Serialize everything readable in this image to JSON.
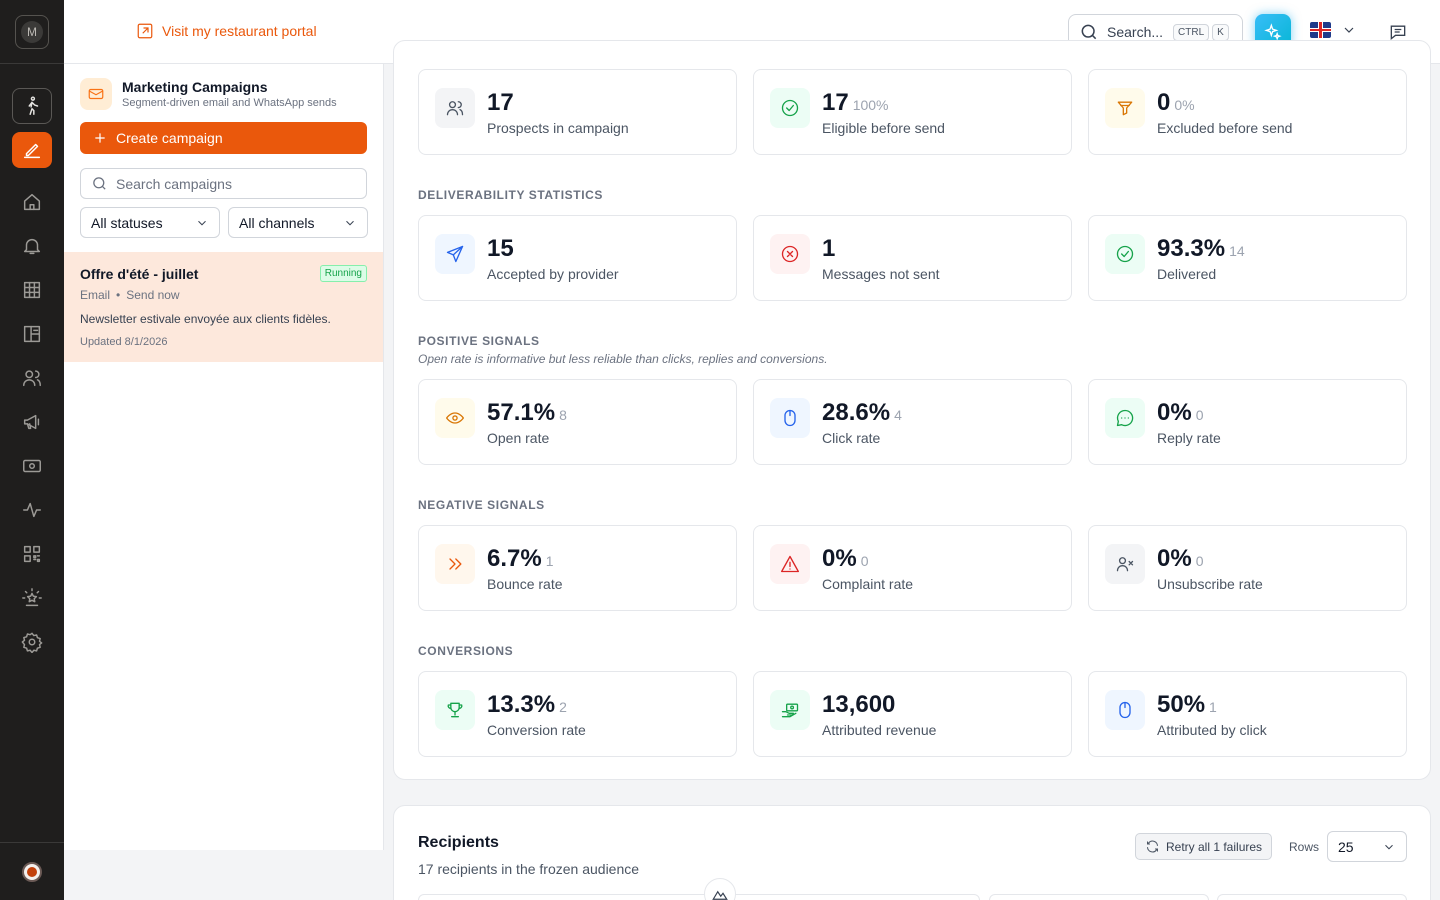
{
  "rail": {
    "avatar_initial": "M",
    "items": [
      {
        "icon": "walking-icon",
        "state": "outlined"
      },
      {
        "icon": "pen-edit-icon",
        "state": "active"
      },
      {
        "icon": "home-icon",
        "state": "default"
      },
      {
        "icon": "bell-icon",
        "state": "default"
      },
      {
        "icon": "grid-icon",
        "state": "default"
      },
      {
        "icon": "layout-icon",
        "state": "default"
      },
      {
        "icon": "users-icon",
        "state": "default"
      },
      {
        "icon": "megaphone-icon",
        "state": "default"
      },
      {
        "icon": "cash-icon",
        "state": "default"
      },
      {
        "icon": "activity-icon",
        "state": "default"
      },
      {
        "icon": "qr-code-icon",
        "state": "default"
      },
      {
        "icon": "star-badge-icon",
        "state": "default"
      },
      {
        "icon": "gear-icon",
        "state": "default"
      }
    ]
  },
  "header": {
    "portal_link": "Visit my restaurant portal",
    "search_label": "Search...",
    "kbd_ctrl": "CTRL",
    "kbd_k": "K"
  },
  "panel": {
    "title": "Marketing Campaigns",
    "subtitle": "Segment-driven email and WhatsApp sends",
    "create_label": "Create campaign",
    "search_placeholder": "Search campaigns",
    "status_filter": "All statuses",
    "channel_filter": "All channels",
    "campaigns": [
      {
        "title": "Offre d'été - juillet",
        "status": "Running",
        "channel": "Email",
        "separator": "•",
        "mode": "Send now",
        "description": "Newsletter estivale envoyée aux clients fidèles.",
        "updated": "Updated 8/1/2026"
      }
    ]
  },
  "audience": {
    "stats": [
      {
        "value": "17",
        "sub": "",
        "label": "Prospects in campaign",
        "icon": "users-icon",
        "tone": "gray"
      },
      {
        "value": "17",
        "sub": "100%",
        "label": "Eligible before send",
        "icon": "check-circle-icon",
        "tone": "green"
      },
      {
        "value": "0",
        "sub": "0%",
        "label": "Excluded before send",
        "icon": "funnel-icon",
        "tone": "amber"
      }
    ]
  },
  "deliverability": {
    "heading": "DELIVERABILITY STATISTICS",
    "stats": [
      {
        "value": "15",
        "sub": "",
        "label": "Accepted by provider",
        "icon": "send-icon",
        "tone": "blue"
      },
      {
        "value": "1",
        "sub": "",
        "label": "Messages not sent",
        "icon": "x-circle-icon",
        "tone": "red"
      },
      {
        "value": "93.3%",
        "sub": "14",
        "label": "Delivered",
        "icon": "check-circle-icon",
        "tone": "green"
      }
    ]
  },
  "positive": {
    "heading": "POSITIVE SIGNALS",
    "note": "Open rate is informative but less reliable than clicks, replies and conversions.",
    "stats": [
      {
        "value": "57.1%",
        "sub": "8",
        "label": "Open rate",
        "icon": "eye-icon",
        "tone": "amber"
      },
      {
        "value": "28.6%",
        "sub": "4",
        "label": "Click rate",
        "icon": "mouse-icon",
        "tone": "blue"
      },
      {
        "value": "0%",
        "sub": "0",
        "label": "Reply rate",
        "icon": "chat-dots-icon",
        "tone": "green"
      }
    ]
  },
  "negative": {
    "heading": "NEGATIVE SIGNALS",
    "stats": [
      {
        "value": "6.7%",
        "sub": "1",
        "label": "Bounce rate",
        "icon": "double-chevron-icon",
        "tone": "orange"
      },
      {
        "value": "0%",
        "sub": "0",
        "label": "Complaint rate",
        "icon": "warning-triangle-icon",
        "tone": "red"
      },
      {
        "value": "0%",
        "sub": "0",
        "label": "Unsubscribe rate",
        "icon": "user-x-icon",
        "tone": "gray"
      }
    ]
  },
  "conversions": {
    "heading": "CONVERSIONS",
    "stats": [
      {
        "value": "13.3%",
        "sub": "2",
        "label": "Conversion rate",
        "icon": "trophy-icon",
        "tone": "green"
      },
      {
        "value": "13,600",
        "sub": "",
        "label": "Attributed revenue",
        "icon": "money-hand-icon",
        "tone": "green"
      },
      {
        "value": "50%",
        "sub": "1",
        "label": "Attributed by click",
        "icon": "mouse-icon",
        "tone": "blue"
      }
    ]
  },
  "recipients": {
    "title": "Recipients",
    "subtitle": "17 recipients in the frozen audience",
    "retry_label": "Retry all 1 failures",
    "rows_label": "Rows",
    "rows_value": "25"
  }
}
